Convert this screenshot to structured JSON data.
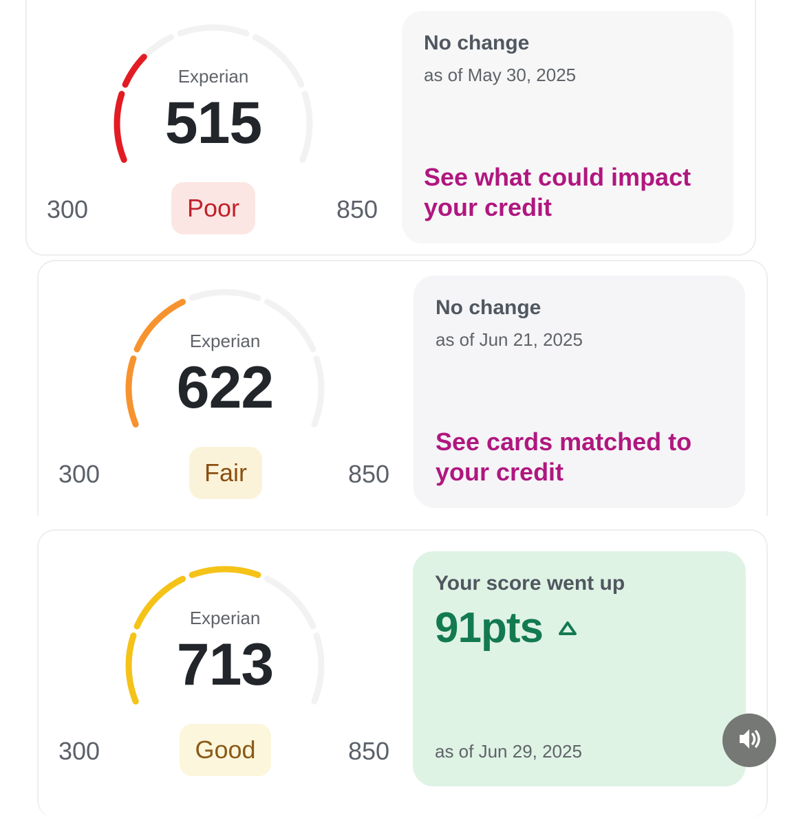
{
  "cards": [
    {
      "bureau": "Experian",
      "score": "515",
      "score_value": 515,
      "min": "300",
      "max": "850",
      "rating": "Poor",
      "rating_color": "#c0212a",
      "rating_bg": "#fbe6e3",
      "gauge_color": "#e31b23",
      "segments_filled": 1.5,
      "panel": {
        "title": "No change",
        "date": "as of May 30, 2025",
        "link": "See what could impact your credit",
        "bg": "#f7f7f8"
      }
    },
    {
      "bureau": "Experian",
      "score": "622",
      "score_value": 622,
      "min": "300",
      "max": "850",
      "rating": "Fair",
      "rating_color": "#8a4f12",
      "rating_bg": "#fbf3d9",
      "gauge_color": "#f7932f",
      "segments_filled": 2.0,
      "panel": {
        "title": "No change",
        "date": "as of Jun 21, 2025",
        "link": "See cards matched to your credit",
        "bg": "#f5f5f7"
      }
    },
    {
      "bureau": "Experian",
      "score": "713",
      "score_value": 713,
      "min": "300",
      "max": "850",
      "rating": "Good",
      "rating_color": "#8a5a17",
      "rating_bg": "#fbf6dc",
      "gauge_color": "#f5c217",
      "segments_filled": 3.0,
      "panel": {
        "title": "Your score went up",
        "delta": "91pts",
        "delta_icon": "triangle-up-outline",
        "date": "as of Jun 29, 2025",
        "bg": "#dff3e5"
      }
    }
  ],
  "sound_button": {
    "icon": "speaker-icon",
    "bg": "#757874"
  },
  "colors": {
    "link": "#b0177f",
    "positive": "#137a4f",
    "track": "#f2f2f2"
  }
}
